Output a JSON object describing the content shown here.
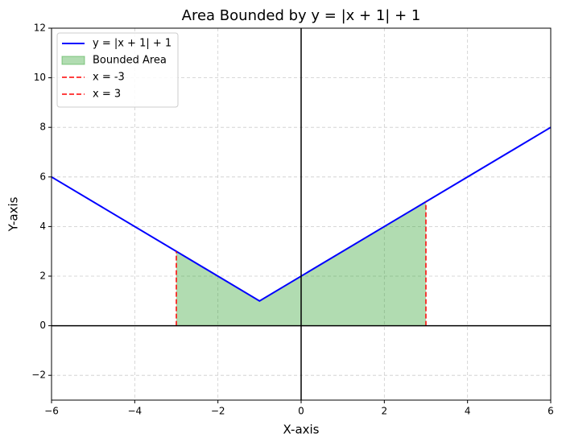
{
  "chart_data": {
    "type": "line",
    "title": "Area Bounded by y = |x + 1| + 1",
    "xlabel": "X-axis",
    "ylabel": "Y-axis",
    "xlim": [
      -6,
      6
    ],
    "xticks": [
      {
        "value": -6,
        "label": "−6"
      },
      {
        "value": -4,
        "label": "−4"
      },
      {
        "value": -2,
        "label": "−2"
      },
      0,
      2,
      4,
      6
    ],
    "ylim": [
      -3,
      12
    ],
    "yticks": [
      {
        "value": -2,
        "label": "−2"
      },
      0,
      2,
      4,
      6,
      8,
      10,
      12
    ],
    "grid": true,
    "legend": "upper-left",
    "series": [
      {
        "name": "y = |x + 1| + 1",
        "color": "#0000ff",
        "style": "solid",
        "x": [
          -6,
          -1,
          6
        ],
        "values": [
          6,
          1,
          8
        ]
      },
      {
        "name": "Bounded Area",
        "color": "#2ca02c",
        "style": "fill",
        "x": [
          -3,
          -1,
          3
        ],
        "values": [
          3,
          1,
          5
        ]
      },
      {
        "name": "x = -3",
        "color": "#ff0000",
        "style": "dashed",
        "x": [
          -3,
          -3
        ],
        "values": [
          0,
          3
        ]
      },
      {
        "name": "x = 3",
        "color": "#ff0000",
        "style": "dashed",
        "x": [
          3,
          3
        ],
        "values": [
          0,
          5
        ]
      }
    ]
  }
}
